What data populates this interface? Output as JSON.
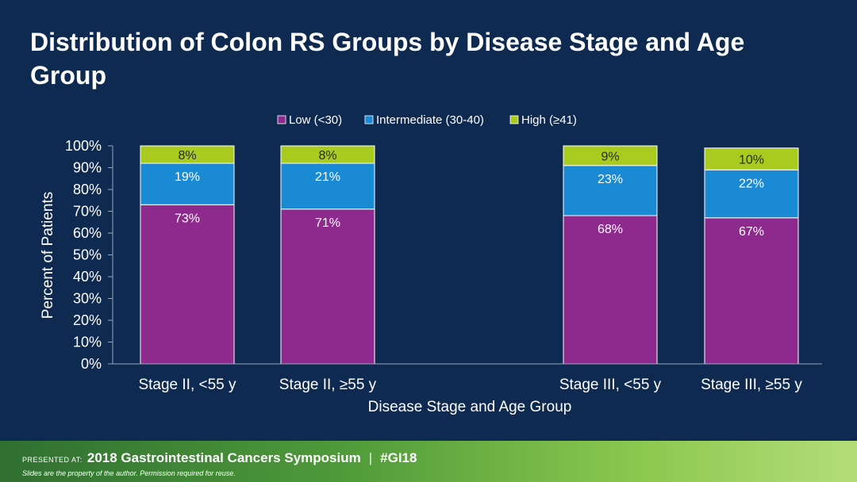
{
  "slide": {
    "title": "Distribution of Colon RS Groups by Disease Stage and Age Group"
  },
  "chart_data": {
    "type": "bar",
    "stacked": true,
    "title": "",
    "xlabel": "Disease Stage and Age Group",
    "ylabel": "Percent of Patients",
    "ylim": [
      0,
      100
    ],
    "y_ticks": [
      "0%",
      "10%",
      "20%",
      "30%",
      "40%",
      "50%",
      "60%",
      "70%",
      "80%",
      "90%",
      "100%"
    ],
    "categories": [
      "Stage II, <55 y",
      "Stage II, ≥55 y",
      "Stage III, <55 y",
      "Stage III, ≥55 y"
    ],
    "legend_position": "top",
    "series": [
      {
        "name": "Low (<30)",
        "color": "#8e2a8e",
        "values": [
          73,
          71,
          68,
          67
        ],
        "labels": [
          "73%",
          "71%",
          "68%",
          "67%"
        ]
      },
      {
        "name": "Intermediate (30-40)",
        "color": "#1b8ad4",
        "values": [
          19,
          21,
          23,
          22
        ],
        "labels": [
          "19%",
          "21%",
          "23%",
          "22%"
        ]
      },
      {
        "name": "High (≥41)",
        "color": "#a9ca1e",
        "values": [
          8,
          8,
          9,
          10
        ],
        "labels": [
          "8%",
          "8%",
          "9%",
          "10%"
        ]
      }
    ]
  },
  "footer": {
    "presented_at": "PRESENTED AT:",
    "event": "2018 Gastrointestinal Cancers Symposium",
    "separator": "|",
    "hashtag": "#GI18",
    "disclaimer": "Slides are the property of the author. Permission required for reuse."
  }
}
